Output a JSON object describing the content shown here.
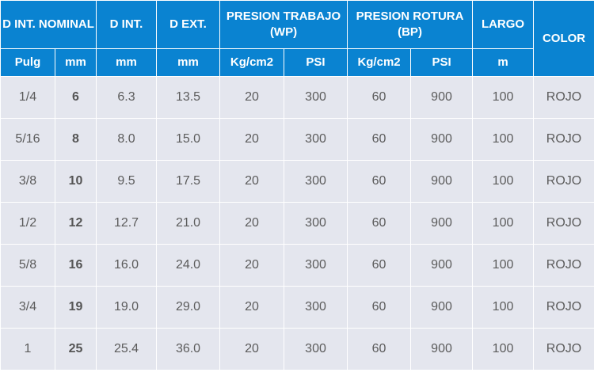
{
  "headers": {
    "d_int_nominal": "D INT. NOMINAL",
    "d_int": "D INT.",
    "d_ext": "D EXT.",
    "presion_trabajo": "PRESION TRABAJO (WP)",
    "presion_rotura": "PRESION ROTURA (BP)",
    "largo": "LARGO",
    "color": "COLOR"
  },
  "units": {
    "pulg": "Pulg",
    "mm_nominal": "mm",
    "mm_int": "mm",
    "mm_ext": "mm",
    "wp_kg": "Kg/cm2",
    "wp_psi": "PSI",
    "bp_kg": "Kg/cm2",
    "bp_psi": "PSI",
    "largo_m": "m"
  },
  "rows": [
    [
      "1/4",
      "6",
      "6.3",
      "13.5",
      "20",
      "300",
      "60",
      "900",
      "100",
      "ROJO"
    ],
    [
      "5/16",
      "8",
      "8.0",
      "15.0",
      "20",
      "300",
      "60",
      "900",
      "100",
      "ROJO"
    ],
    [
      "3/8",
      "10",
      "9.5",
      "17.5",
      "20",
      "300",
      "60",
      "900",
      "100",
      "ROJO"
    ],
    [
      "1/2",
      "12",
      "12.7",
      "21.0",
      "20",
      "300",
      "60",
      "900",
      "100",
      "ROJO"
    ],
    [
      "5/8",
      "16",
      "16.0",
      "24.0",
      "20",
      "300",
      "60",
      "900",
      "100",
      "ROJO"
    ],
    [
      "3/4",
      "19",
      "19.0",
      "29.0",
      "20",
      "300",
      "60",
      "900",
      "100",
      "ROJO"
    ],
    [
      "1",
      "25",
      "25.4",
      "36.0",
      "20",
      "300",
      "60",
      "900",
      "100",
      "ROJO"
    ]
  ]
}
